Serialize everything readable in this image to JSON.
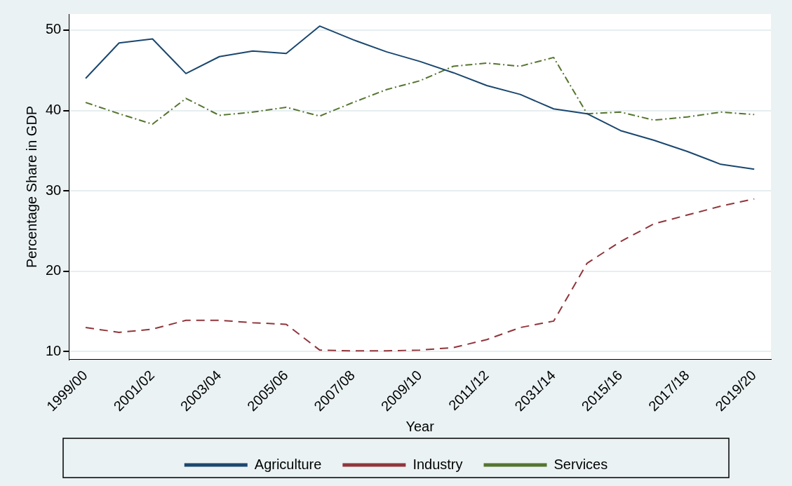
{
  "chart_data": {
    "type": "line",
    "xlabel": "Year",
    "ylabel": "Percentage Share in GDP",
    "categories": [
      "1999/00",
      null,
      "2001/02",
      null,
      "2003/04",
      null,
      "2005/06",
      null,
      "2007/08",
      null,
      "2009/10",
      null,
      "2011/12",
      null,
      "2031/14",
      null,
      "2015/16",
      null,
      "2017/18",
      null,
      "2019/20"
    ],
    "series": [
      {
        "name": "Agriculture",
        "color": "#1a476f",
        "line_style": "solid",
        "values": [
          44.0,
          48.4,
          48.9,
          44.6,
          46.7,
          47.4,
          47.1,
          50.5,
          48.8,
          47.3,
          46.1,
          44.7,
          43.1,
          42.0,
          40.2,
          39.6,
          37.5,
          36.3,
          34.9,
          33.3,
          32.7
        ]
      },
      {
        "name": "Industry",
        "color": "#90353b",
        "line_style": "dashed",
        "values": [
          13.0,
          12.4,
          12.8,
          13.9,
          13.9,
          13.6,
          13.4,
          10.2,
          10.1,
          10.1,
          10.2,
          10.5,
          11.5,
          13.0,
          13.8,
          21.0,
          23.7,
          25.9,
          27.0,
          28.1,
          29.0
        ]
      },
      {
        "name": "Services",
        "color": "#55752f",
        "line_style": "dotted",
        "values": [
          41.0,
          39.6,
          38.3,
          41.5,
          39.4,
          39.8,
          40.4,
          39.3,
          41.0,
          42.6,
          43.7,
          45.5,
          45.9,
          45.5,
          46.6,
          39.6,
          39.8,
          38.8,
          39.2,
          39.8,
          39.5
        ]
      }
    ],
    "ylim": [
      9,
      52
    ],
    "yticks": [
      10,
      20,
      30,
      40,
      50
    ],
    "grid": "y",
    "legend": "bottom",
    "marker": "none"
  }
}
